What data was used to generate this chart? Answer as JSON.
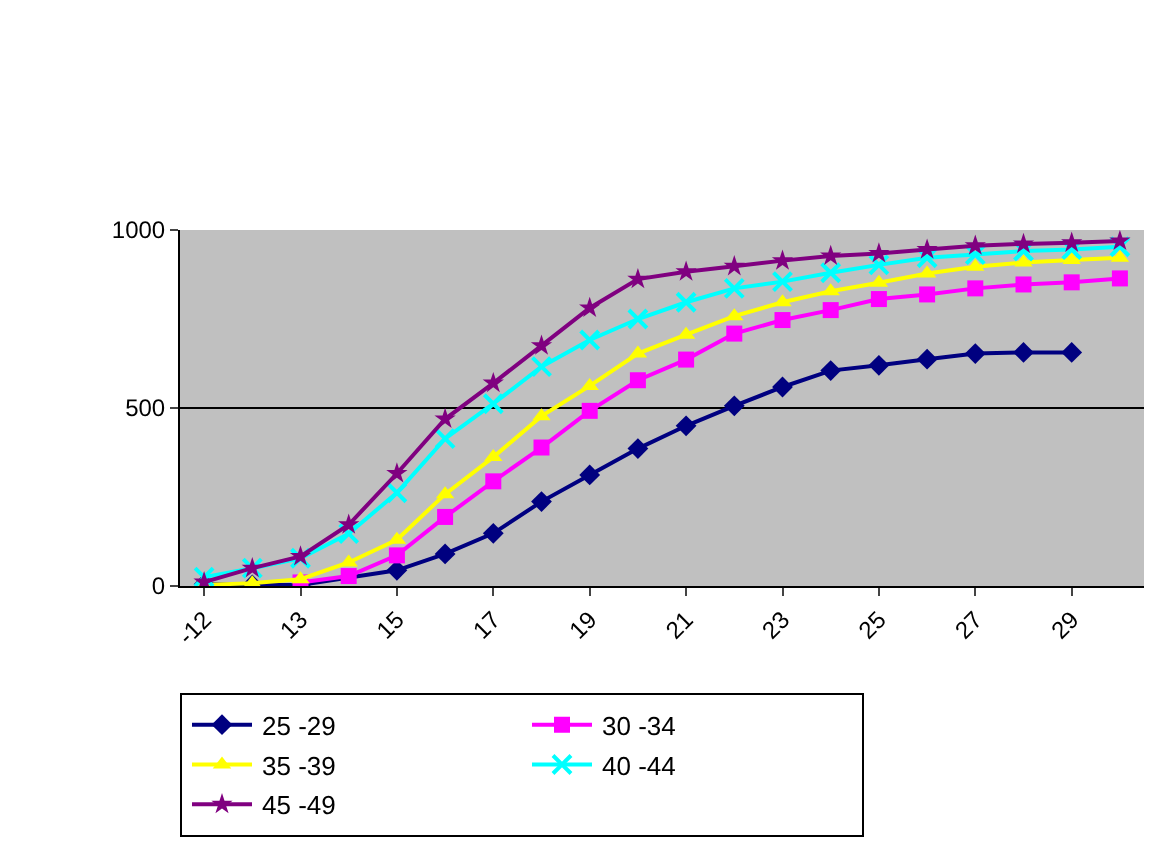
{
  "chart_data": {
    "type": "line",
    "categories": [
      "-12",
      null,
      "13",
      null,
      "15",
      null,
      "17",
      null,
      "19",
      null,
      "21",
      null,
      "23",
      null,
      "25",
      null,
      "27",
      null,
      "29",
      null
    ],
    "series": [
      {
        "name": "25 -29",
        "color": "#000080",
        "marker": "diamond",
        "values": [
          5,
          3,
          3,
          null,
          44,
          90,
          148,
          237,
          312,
          386,
          450,
          506,
          559,
          605,
          620,
          637,
          653,
          656,
          656,
          null
        ]
      },
      {
        "name": "30 -34",
        "color": "#ff00ff",
        "marker": "square",
        "values": [
          null,
          null,
          10,
          28,
          86,
          194,
          294,
          389,
          492,
          578,
          636,
          709,
          747,
          775,
          806,
          819,
          836,
          847,
          853,
          864
        ]
      },
      {
        "name": "35 -39",
        "color": "#ffff00",
        "marker": "triangle",
        "values": [
          3,
          8,
          19,
          66,
          130,
          258,
          362,
          477,
          562,
          653,
          706,
          758,
          797,
          828,
          852,
          878,
          897,
          909,
          916,
          922
        ]
      },
      {
        "name": "40 -44",
        "color": "#00ffff",
        "marker": "cross",
        "values": [
          25,
          50,
          78,
          147,
          262,
          414,
          512,
          616,
          691,
          750,
          797,
          836,
          855,
          880,
          902,
          922,
          931,
          941,
          945,
          953
        ]
      },
      {
        "name": "45 -49",
        "color": "#800080",
        "marker": "star",
        "values": [
          11,
          50,
          83,
          172,
          316,
          469,
          570,
          675,
          781,
          862,
          883,
          898,
          914,
          927,
          934,
          945,
          956,
          961,
          964,
          969
        ]
      }
    ],
    "ylim": [
      0,
      1000
    ],
    "yticks": [
      0,
      500,
      1000
    ],
    "grid": "y",
    "legend": "bottom",
    "line_style": "solid"
  }
}
